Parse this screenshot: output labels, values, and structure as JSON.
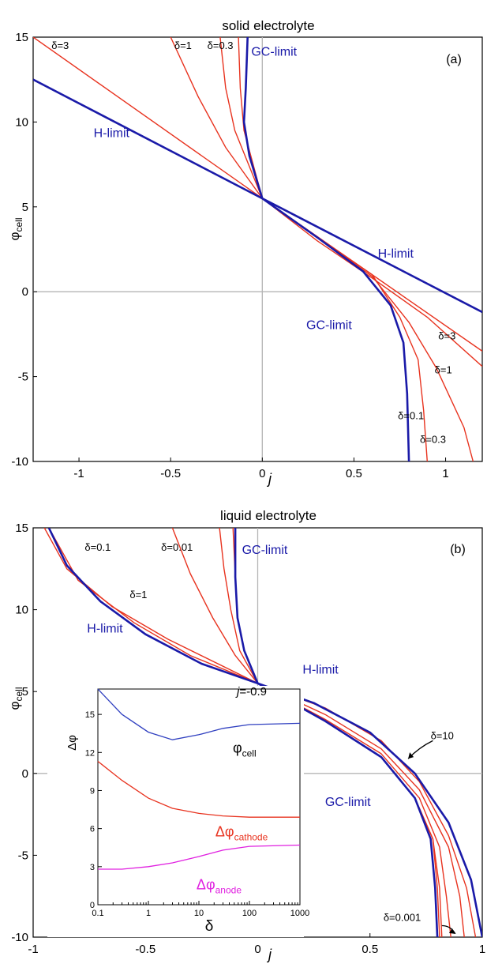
{
  "chart_data": [
    {
      "type": "line",
      "title": "solid electrolyte",
      "panel_label": "(a)",
      "xlabel": "j",
      "ylabel": "φcell",
      "xlim": [
        -1.25,
        1.2
      ],
      "ylim": [
        -10,
        15
      ],
      "xticks": [
        "-1",
        "-0.5",
        "0",
        "0.5",
        "1"
      ],
      "yticks": [
        "-10",
        "-5",
        "0",
        "5",
        "10",
        "15"
      ],
      "grid": false,
      "colors": {
        "limit": "#1a1aa8",
        "delta": "#e8331f",
        "ref": "#b4b4b4"
      },
      "series": [
        {
          "name": "H-limit",
          "kind": "limit",
          "points": [
            [
              -1.25,
              12.5
            ],
            [
              0,
              5.5
            ],
            [
              1.2,
              -1.2
            ]
          ]
        },
        {
          "name": "GC-limit",
          "kind": "limit",
          "points": [
            [
              -0.08,
              15
            ],
            [
              -0.09,
              12
            ],
            [
              -0.1,
              10
            ],
            [
              -0.07,
              8
            ],
            [
              0,
              5.5
            ],
            [
              0.3,
              3.2
            ],
            [
              0.55,
              1.2
            ],
            [
              0.7,
              -0.8
            ],
            [
              0.77,
              -3
            ],
            [
              0.79,
              -6
            ],
            [
              0.8,
              -10
            ]
          ]
        },
        {
          "name": "δ=3",
          "kind": "delta",
          "points": [
            [
              -1.25,
              15
            ],
            [
              0,
              5.5
            ],
            [
              1.2,
              -3.5
            ]
          ]
        },
        {
          "name": "δ=1",
          "kind": "delta",
          "points": [
            [
              -0.5,
              15
            ],
            [
              -0.35,
              11.5
            ],
            [
              -0.2,
              8.5
            ],
            [
              0,
              5.5
            ],
            [
              0.3,
              3
            ],
            [
              0.6,
              0.8
            ],
            [
              0.9,
              -1.5
            ],
            [
              1.2,
              -4.4
            ]
          ]
        },
        {
          "name": "δ=0.3",
          "kind": "delta",
          "points": [
            [
              -0.23,
              15
            ],
            [
              -0.2,
              12
            ],
            [
              -0.15,
              9.5
            ],
            [
              0,
              5.5
            ],
            [
              0.3,
              3.2
            ],
            [
              0.6,
              0.9
            ],
            [
              0.8,
              -1.8
            ],
            [
              0.95,
              -4.5
            ],
            [
              1.1,
              -8
            ],
            [
              1.15,
              -10
            ]
          ]
        },
        {
          "name": "δ=0.1",
          "kind": "delta",
          "points": [
            [
              -0.13,
              15
            ],
            [
              -0.12,
              12
            ],
            [
              -0.1,
              9.5
            ],
            [
              0,
              5.5
            ],
            [
              0.3,
              3.2
            ],
            [
              0.6,
              1
            ],
            [
              0.75,
              -1.5
            ],
            [
              0.85,
              -4
            ],
            [
              0.88,
              -7
            ],
            [
              0.9,
              -10
            ]
          ]
        }
      ],
      "annotations": [
        {
          "text": "δ=3",
          "x": -1.15,
          "y": 14.3
        },
        {
          "text": "δ=1",
          "x": -0.48,
          "y": 14.3
        },
        {
          "text": "δ=0.3",
          "x": -0.3,
          "y": 14.3
        },
        {
          "text": "GC-limit",
          "x": -0.06,
          "y": 13.9
        },
        {
          "text": "H-limit",
          "x": -0.92,
          "y": 9.1
        },
        {
          "text": "H-limit",
          "x": 0.63,
          "y": 2.0
        },
        {
          "text": "GC-limit",
          "x": 0.24,
          "y": -2.2
        },
        {
          "text": "δ=3",
          "x": 0.96,
          "y": -2.8
        },
        {
          "text": "δ=1",
          "x": 0.94,
          "y": -4.8
        },
        {
          "text": "δ=0.1",
          "x": 0.74,
          "y": -7.5
        },
        {
          "text": "δ=0.3",
          "x": 0.86,
          "y": -8.9
        }
      ]
    },
    {
      "type": "line",
      "title": "liquid electrolyte",
      "panel_label": "(b)",
      "xlabel": "j",
      "ylabel": "φcell",
      "xlim": [
        -1,
        1
      ],
      "ylim": [
        -10,
        15
      ],
      "xticks": [
        "-1",
        "-0.5",
        "0",
        "0.5",
        "1"
      ],
      "yticks": [
        "-10",
        "-5",
        "0",
        "5",
        "10",
        "15"
      ],
      "grid": false,
      "series": [
        {
          "name": "H-limit",
          "kind": "limit",
          "points": [
            [
              -0.93,
              15
            ],
            [
              -0.85,
              12.7
            ],
            [
              -0.7,
              10.5
            ],
            [
              -0.5,
              8.5
            ],
            [
              -0.25,
              6.7
            ],
            [
              0,
              5.5
            ],
            [
              0.25,
              4.3
            ],
            [
              0.5,
              2.5
            ],
            [
              0.7,
              0
            ],
            [
              0.85,
              -3
            ],
            [
              0.95,
              -6.5
            ],
            [
              1,
              -10
            ]
          ]
        },
        {
          "name": "GC-limit",
          "kind": "limit",
          "points": [
            [
              -0.1,
              15
            ],
            [
              -0.1,
              12
            ],
            [
              -0.09,
              9.5
            ],
            [
              -0.06,
              7.5
            ],
            [
              0,
              5.5
            ],
            [
              0.3,
              3.2
            ],
            [
              0.55,
              1
            ],
            [
              0.7,
              -1.5
            ],
            [
              0.77,
              -4
            ],
            [
              0.79,
              -7
            ],
            [
              0.8,
              -10
            ]
          ]
        },
        {
          "name": "δ=0.01",
          "kind": "delta",
          "points": [
            [
              -0.17,
              15
            ],
            [
              -0.15,
              12.5
            ],
            [
              -0.12,
              10
            ],
            [
              -0.08,
              7.5
            ],
            [
              0,
              5.5
            ],
            [
              0.3,
              3.2
            ],
            [
              0.55,
              1
            ],
            [
              0.7,
              -1.5
            ],
            [
              0.78,
              -4
            ],
            [
              0.81,
              -7
            ],
            [
              0.82,
              -10
            ]
          ]
        },
        {
          "name": "δ=0.1",
          "kind": "delta",
          "points": [
            [
              -0.38,
              15
            ],
            [
              -0.3,
              12.2
            ],
            [
              -0.2,
              9.5
            ],
            [
              -0.1,
              7.2
            ],
            [
              0,
              5.5
            ],
            [
              0.3,
              3.3
            ],
            [
              0.55,
              1.2
            ],
            [
              0.72,
              -1.5
            ],
            [
              0.81,
              -4.5
            ],
            [
              0.84,
              -7.5
            ],
            [
              0.86,
              -10
            ]
          ]
        },
        {
          "name": "δ=1",
          "kind": "delta",
          "points": [
            [
              -0.93,
              15
            ],
            [
              -0.8,
              11.8
            ],
            [
              -0.55,
              9.2
            ],
            [
              -0.3,
              7.2
            ],
            [
              0,
              5.5
            ],
            [
              0.3,
              3.6
            ],
            [
              0.55,
              1.5
            ],
            [
              0.72,
              -1
            ],
            [
              0.85,
              -4.5
            ],
            [
              0.9,
              -7.5
            ],
            [
              0.92,
              -10
            ]
          ]
        },
        {
          "name": "δ=10",
          "kind": "delta",
          "points": [
            [
              -0.95,
              15
            ],
            [
              -0.85,
              12.5
            ],
            [
              -0.65,
              10.2
            ],
            [
              -0.4,
              8.2
            ],
            [
              0,
              5.5
            ],
            [
              0.3,
              4
            ],
            [
              0.55,
              2
            ],
            [
              0.72,
              -0.5
            ],
            [
              0.85,
              -3.8
            ],
            [
              0.93,
              -7
            ],
            [
              0.97,
              -10
            ]
          ]
        },
        {
          "name": "δ=0.001",
          "kind": "delta",
          "points": [
            [
              -0.11,
              15
            ],
            [
              -0.1,
              12
            ],
            [
              -0.09,
              9.5
            ],
            [
              -0.06,
              7.5
            ],
            [
              0,
              5.5
            ],
            [
              0.3,
              3.2
            ],
            [
              0.55,
              1
            ],
            [
              0.7,
              -1.5
            ],
            [
              0.78,
              -4
            ],
            [
              0.8,
              -7
            ],
            [
              0.81,
              -10
            ]
          ]
        }
      ],
      "annotations": [
        {
          "text": "δ=0.1",
          "x": -0.77,
          "y": 13.6
        },
        {
          "text": "δ=0.01",
          "x": -0.43,
          "y": 13.6
        },
        {
          "text": "GC-limit",
          "x": -0.07,
          "y": 13.4
        },
        {
          "text": "δ=1",
          "x": -0.57,
          "y": 10.7
        },
        {
          "text": "H-limit",
          "x": -0.76,
          "y": 8.6
        },
        {
          "text": "H-limit",
          "x": 0.2,
          "y": 6.1
        },
        {
          "text": "δ=10",
          "x": 0.77,
          "y": 2.1
        },
        {
          "text": "GC-limit",
          "x": 0.3,
          "y": -2.0
        },
        {
          "text": "δ=0.001",
          "x": 0.56,
          "y": -9.0
        }
      ],
      "inset": {
        "type": "line",
        "corner_label_var": "j",
        "corner_label_value": "=-0.9",
        "xlabel": "δ",
        "ylabel": "Δφ",
        "xscale": "log",
        "xlim": [
          0.1,
          1000
        ],
        "ylim": [
          0,
          17
        ],
        "xticks": [
          "0.1",
          "1",
          "10",
          "100",
          "1000"
        ],
        "yticks": [
          "0",
          "3",
          "6",
          "9",
          "12",
          "15"
        ],
        "series": [
          {
            "name": "φcell",
            "label_main": "φ",
            "label_sub": "cell",
            "color": "#3040c0",
            "points": [
              [
                0.1,
                17
              ],
              [
                0.3,
                15
              ],
              [
                1,
                13.6
              ],
              [
                3,
                13
              ],
              [
                10,
                13.4
              ],
              [
                30,
                13.9
              ],
              [
                100,
                14.2
              ],
              [
                1000,
                14.3
              ]
            ]
          },
          {
            "name": "Δφcathode",
            "label_main": "Δφ",
            "label_sub": "cathode",
            "color": "#e8331f",
            "points": [
              [
                0.1,
                11.3
              ],
              [
                0.3,
                9.8
              ],
              [
                1,
                8.4
              ],
              [
                3,
                7.6
              ],
              [
                10,
                7.2
              ],
              [
                30,
                7.0
              ],
              [
                100,
                6.9
              ],
              [
                1000,
                6.9
              ]
            ]
          },
          {
            "name": "Δφanode",
            "label_main": "Δφ",
            "label_sub": "anode",
            "color": "#e020e0",
            "points": [
              [
                0.1,
                2.8
              ],
              [
                0.3,
                2.8
              ],
              [
                1,
                3.0
              ],
              [
                3,
                3.3
              ],
              [
                10,
                3.8
              ],
              [
                30,
                4.3
              ],
              [
                100,
                4.6
              ],
              [
                1000,
                4.7
              ]
            ]
          }
        ]
      }
    }
  ]
}
